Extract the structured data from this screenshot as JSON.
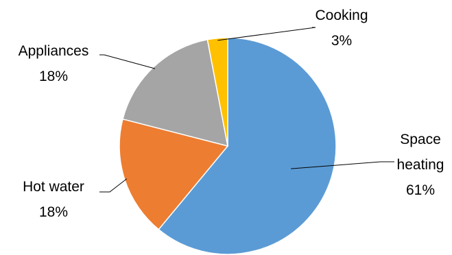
{
  "chart_data": {
    "type": "pie",
    "slices": [
      {
        "name": "Space heating",
        "label_lines": [
          "Space",
          "heating"
        ],
        "value": 61,
        "value_label": "61%",
        "color": "#5B9BD5"
      },
      {
        "name": "Hot water",
        "label_lines": [
          "Hot water"
        ],
        "value": 18,
        "value_label": "18%",
        "color": "#ED7D31"
      },
      {
        "name": "Appliances",
        "label_lines": [
          "Appliances"
        ],
        "value": 18,
        "value_label": "18%",
        "color": "#A5A5A5"
      },
      {
        "name": "Cooking",
        "label_lines": [
          "Cooking"
        ],
        "value": 3,
        "value_label": "3%",
        "color": "#FFC000"
      }
    ],
    "start_angle": "12 o'clock",
    "direction": "clockwise",
    "legend": "none",
    "labels": "outside with leader lines"
  }
}
